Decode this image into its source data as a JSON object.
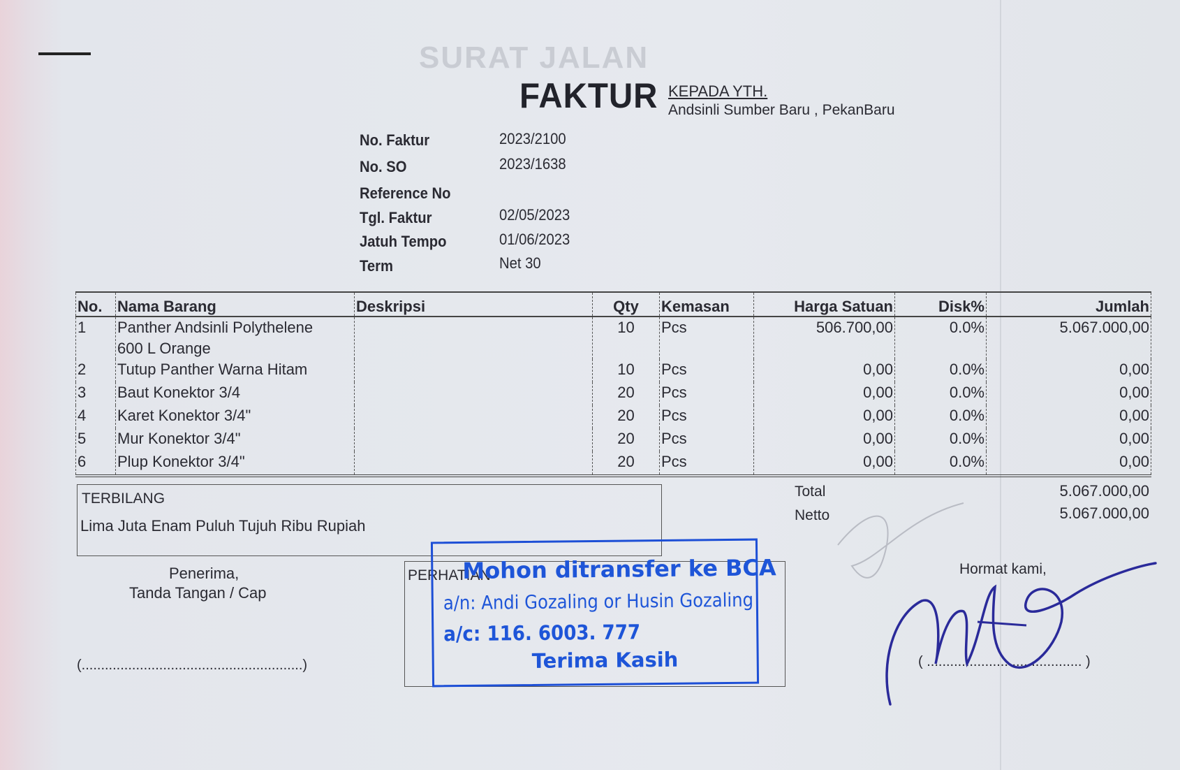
{
  "ghost_text": "SURAT JALAN",
  "header": {
    "title": "FAKTUR",
    "kepada_label": "KEPADA YTH.",
    "customer": "Andsinli Sumber Baru , PekanBaru"
  },
  "info": [
    {
      "label": "No. Faktur",
      "value": "2023/2100"
    },
    {
      "label": "No. SO",
      "value": "2023/1638"
    },
    {
      "label": "Reference No",
      "value": ""
    },
    {
      "label": "Tgl. Faktur",
      "value": "02/05/2023"
    },
    {
      "label": "Jatuh Tempo",
      "value": "01/06/2023"
    },
    {
      "label": "Term",
      "value": "Net 30"
    }
  ],
  "table": {
    "headers": [
      "No.",
      "Nama Barang",
      "Deskripsi",
      "Qty",
      "Kemasan",
      "Harga Satuan",
      "Disk%",
      "Jumlah"
    ],
    "rows": [
      {
        "no": "1",
        "nama_line1": "Panther Andsinli Polythelene",
        "nama_line2": "600 L Orange",
        "deskripsi": "",
        "qty": "10",
        "kemasan": "Pcs",
        "harga": "506.700,00",
        "disk": "0.0%",
        "jumlah": "5.067.000,00"
      },
      {
        "no": "2",
        "nama_line1": "Tutup Panther Warna Hitam",
        "nama_line2": "",
        "deskripsi": "",
        "qty": "10",
        "kemasan": "Pcs",
        "harga": "0,00",
        "disk": "0.0%",
        "jumlah": "0,00"
      },
      {
        "no": "3",
        "nama_line1": "Baut Konektor 3/4",
        "nama_line2": "",
        "deskripsi": "",
        "qty": "20",
        "kemasan": "Pcs",
        "harga": "0,00",
        "disk": "0.0%",
        "jumlah": "0,00"
      },
      {
        "no": "4",
        "nama_line1": "Karet Konektor 3/4\"",
        "nama_line2": "",
        "deskripsi": "",
        "qty": "20",
        "kemasan": "Pcs",
        "harga": "0,00",
        "disk": "0.0%",
        "jumlah": "0,00"
      },
      {
        "no": "5",
        "nama_line1": "Mur Konektor 3/4\"",
        "nama_line2": "",
        "deskripsi": "",
        "qty": "20",
        "kemasan": "Pcs",
        "harga": "0,00",
        "disk": "0.0%",
        "jumlah": "0,00"
      },
      {
        "no": "6",
        "nama_line1": "Plup Konektor 3/4\"",
        "nama_line2": "",
        "deskripsi": "",
        "qty": "20",
        "kemasan": "Pcs",
        "harga": "0,00",
        "disk": "0.0%",
        "jumlah": "0,00"
      }
    ]
  },
  "terbilang": {
    "label": "TERBILANG",
    "text": "Lima Juta Enam Puluh Tujuh Ribu Rupiah"
  },
  "totals": {
    "total_label": "Total",
    "total_value": "5.067.000,00",
    "netto_label": "Netto",
    "netto_value": "5.067.000,00"
  },
  "receiver": {
    "line1": "Penerima,",
    "line2": "Tanda Tangan / Cap",
    "signature_line": "(.........................................................)"
  },
  "perhatian_label": "PERHATIAN",
  "stamp": {
    "line1": "Mohon ditransfer ke BCA",
    "line2": "a/n: Andi Gozaling or Husin Gozaling",
    "line3": "a/c: 116. 6003. 777",
    "line4": "Terima Kasih",
    "color": "#1e55d8"
  },
  "sender": {
    "label": "Hormat kami,",
    "signature_line": "( ........................................ )"
  },
  "colors": {
    "ink": "#2a2a32",
    "signature": "#2a2a9a"
  }
}
